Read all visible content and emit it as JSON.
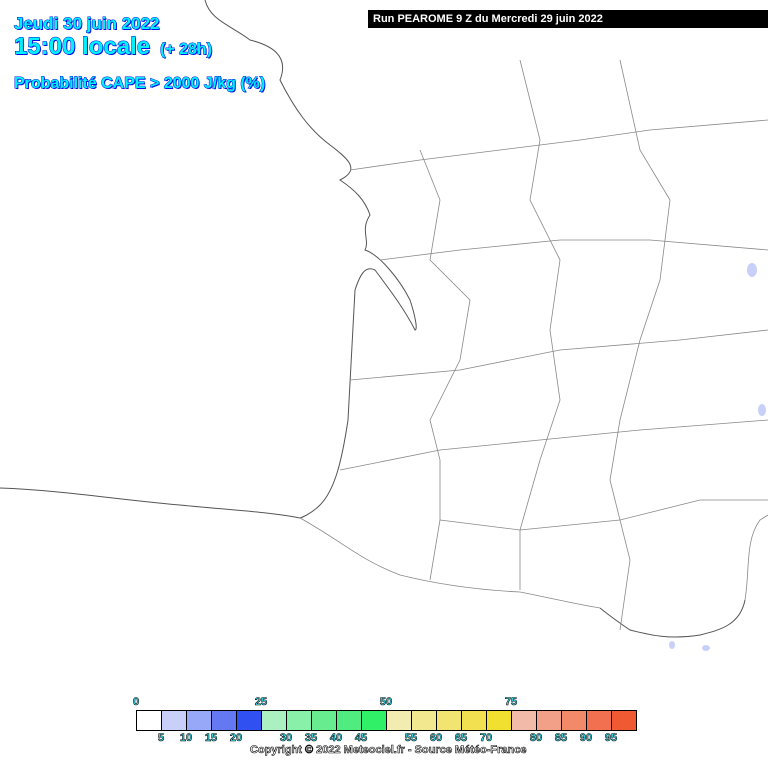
{
  "header": {
    "date": "Jeudi 30 juin 2022",
    "time": "15:00 locale",
    "lead": "(+ 28h)",
    "parameter": "Probabilité CAPE > 2000 J/kg (%)",
    "run": "Run PEAROME 9 Z du Mercredi 29 juin 2022"
  },
  "legend": {
    "top_labels": [
      "0",
      "25",
      "50",
      "75"
    ],
    "bottom_labels": [
      "5",
      "10",
      "15",
      "20",
      "30",
      "35",
      "40",
      "45",
      "55",
      "60",
      "65",
      "70",
      "80",
      "85",
      "90",
      "95"
    ],
    "colors": [
      "#ffffff",
      "#c8d0fa",
      "#98a8f8",
      "#6478f2",
      "#3050f2",
      "#aaf0c0",
      "#88f0a8",
      "#68ec90",
      "#50ec80",
      "#30f068",
      "#f2ecb0",
      "#f2e890",
      "#f2e470",
      "#f2e050",
      "#f2e030",
      "#f2baa8",
      "#f2a088",
      "#f28a6a",
      "#f27050",
      "#f05a32"
    ]
  },
  "copyright": "Copyright © 2022 Meteociel.fr - Source Météo-France"
}
